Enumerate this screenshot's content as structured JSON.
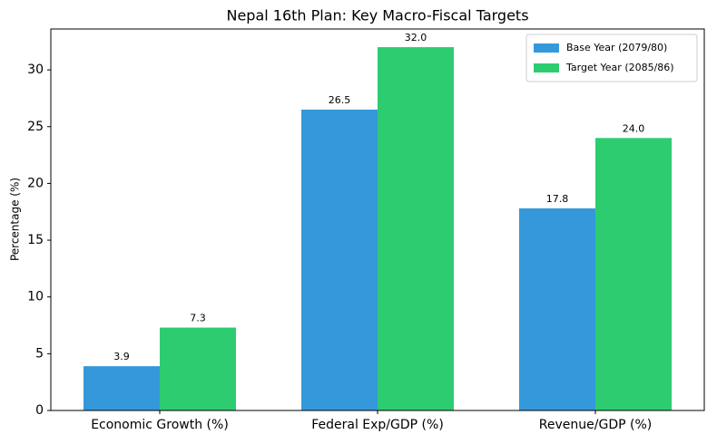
{
  "chart_data": {
    "type": "bar",
    "title": "Nepal 16th Plan: Key Macro-Fiscal Targets",
    "y_label": "Percentage (%)",
    "categories": [
      "Economic Growth (%)",
      "Federal Exp/GDP (%)",
      "Revenue/GDP (%)"
    ],
    "series": [
      {
        "name": "Base Year (2079/80)",
        "color": "#3498db",
        "values": [
          3.9,
          26.5,
          17.8
        ],
        "value_labels": [
          "3.9",
          "26.5",
          "17.8"
        ]
      },
      {
        "name": "Target Year (2085/86)",
        "color": "#2ecc71",
        "values": [
          7.3,
          32.0,
          24.0
        ],
        "value_labels": [
          "7.3",
          "32.0",
          "24.0"
        ]
      }
    ],
    "ylim": [
      0,
      33.6
    ],
    "yticks": [
      0,
      5,
      10,
      15,
      20,
      25,
      30
    ],
    "legend": "upper right"
  }
}
